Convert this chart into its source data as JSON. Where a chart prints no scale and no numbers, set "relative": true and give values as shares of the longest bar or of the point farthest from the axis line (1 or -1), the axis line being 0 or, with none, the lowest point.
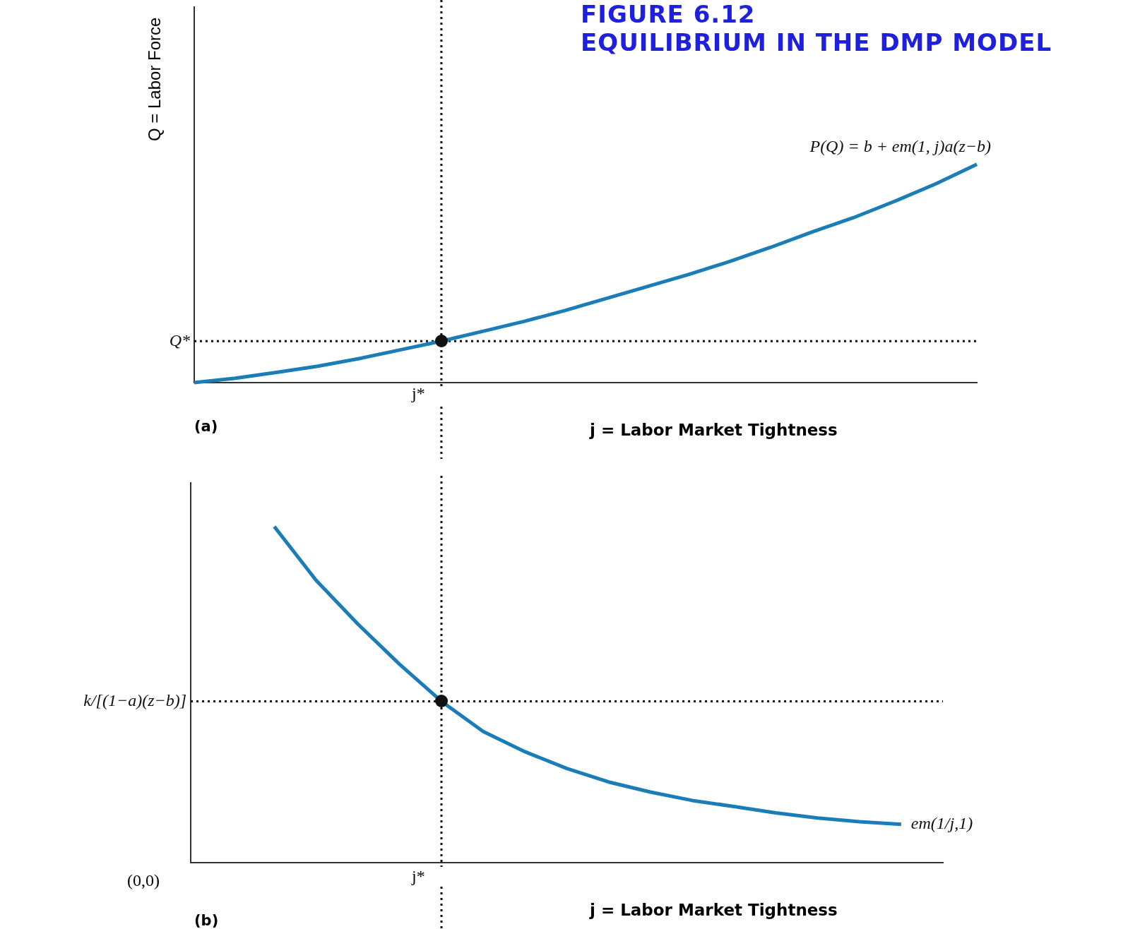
{
  "chart_data": [
    {
      "type": "line",
      "title": "FIGURE 6.12",
      "subtitle": "EQUILIBRIUM IN THE DMP MODEL",
      "ylabel": "Q = Labor Force",
      "xlabel": "j = Labor Market Tightness",
      "relative": true,
      "categories": [
        null,
        null,
        null,
        null,
        null,
        null,
        null,
        null,
        null,
        null,
        null,
        null,
        null,
        null,
        null,
        null,
        null,
        null,
        null,
        null
      ],
      "series": [
        {
          "name": "P(Q) = b + em(1, j)a(z−b)",
          "color": "#1a7db8",
          "values": [
            0,
            0.02,
            0.047,
            0.075,
            0.11,
            0.15,
            0.19,
            0.235,
            0.28,
            0.33,
            0.385,
            0.44,
            0.495,
            0.555,
            0.62,
            0.69,
            0.755,
            0.83,
            0.91,
            1
          ]
        }
      ],
      "ref_lines": [
        {
          "axis": "y",
          "value": 0.19,
          "label": "Q*",
          "line_style": "dotted"
        }
      ],
      "annotations": [
        "j*",
        "(a)"
      ],
      "marker": "none",
      "grid": false,
      "legend": false
    },
    {
      "type": "line",
      "xlabel": "j = Labor Market Tightness",
      "relative": true,
      "categories": [
        null,
        null,
        null,
        null,
        null,
        null,
        null,
        null,
        null,
        null,
        null,
        null,
        null,
        null,
        null,
        null,
        null,
        null,
        null
      ],
      "series": [
        {
          "name": "em(1/j,1)",
          "color": "#1a7db8",
          "values": [
            null,
            null,
            1,
            0.84,
            0.71,
            0.59,
            0.48,
            0.39,
            0.33,
            0.28,
            0.24,
            0.21,
            0.185,
            0.167,
            0.148,
            0.133,
            0.122,
            0.114,
            null
          ]
        }
      ],
      "ref_lines": [
        {
          "axis": "y",
          "value": 0.48,
          "label": "k/[(1−a)(z−b)]",
          "line_style": "dotted"
        }
      ],
      "annotations": [
        "j*",
        "(0,0)",
        "(b)"
      ],
      "marker": "none",
      "grid": false,
      "legend": false
    }
  ]
}
